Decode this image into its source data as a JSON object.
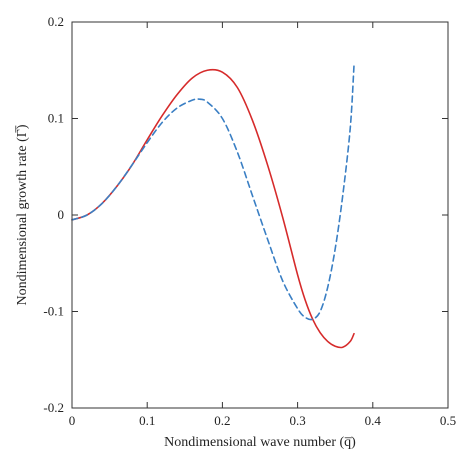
{
  "chart_data": {
    "type": "line",
    "xlabel": "Nondimensional wave number (q̅)",
    "ylabel": "Nondimensional growth rate (Γ̅)",
    "xlim": [
      0,
      0.5
    ],
    "ylim": [
      -0.2,
      0.2
    ],
    "x_ticks": [
      "0",
      "0.1",
      "0.2",
      "0.3",
      "0.4",
      "0.5"
    ],
    "y_ticks": [
      "-0.2",
      "-0.1",
      "0",
      "0.1",
      "0.2"
    ],
    "grid": false,
    "legend": "none",
    "series": [
      {
        "color": "#d62b2b",
        "style": "solid",
        "x": [
          0,
          0.02,
          0.04,
          0.06,
          0.08,
          0.1,
          0.12,
          0.14,
          0.16,
          0.18,
          0.2,
          0.22,
          0.24,
          0.26,
          0.28,
          0.3,
          0.31,
          0.32,
          0.33,
          0.34,
          0.35,
          0.36,
          0.37,
          0.375
        ],
        "y": [
          -0.005,
          0.0,
          0.012,
          0.03,
          0.052,
          0.078,
          0.103,
          0.125,
          0.142,
          0.15,
          0.148,
          0.132,
          0.098,
          0.052,
          -0.002,
          -0.062,
          -0.088,
          -0.108,
          -0.122,
          -0.131,
          -0.136,
          -0.137,
          -0.131,
          -0.123
        ]
      },
      {
        "color": "#3a7fc4",
        "style": "dashed",
        "x": [
          0,
          0.02,
          0.04,
          0.06,
          0.08,
          0.1,
          0.12,
          0.14,
          0.16,
          0.17,
          0.18,
          0.2,
          0.22,
          0.24,
          0.26,
          0.28,
          0.3,
          0.31,
          0.32,
          0.33,
          0.34,
          0.35,
          0.36,
          0.37,
          0.375
        ],
        "y": [
          -0.005,
          0.0,
          0.012,
          0.03,
          0.052,
          0.075,
          0.096,
          0.111,
          0.119,
          0.12,
          0.117,
          0.1,
          0.065,
          0.02,
          -0.025,
          -0.068,
          -0.097,
          -0.106,
          -0.108,
          -0.1,
          -0.075,
          -0.035,
          0.02,
          0.09,
          0.155
        ]
      }
    ]
  }
}
